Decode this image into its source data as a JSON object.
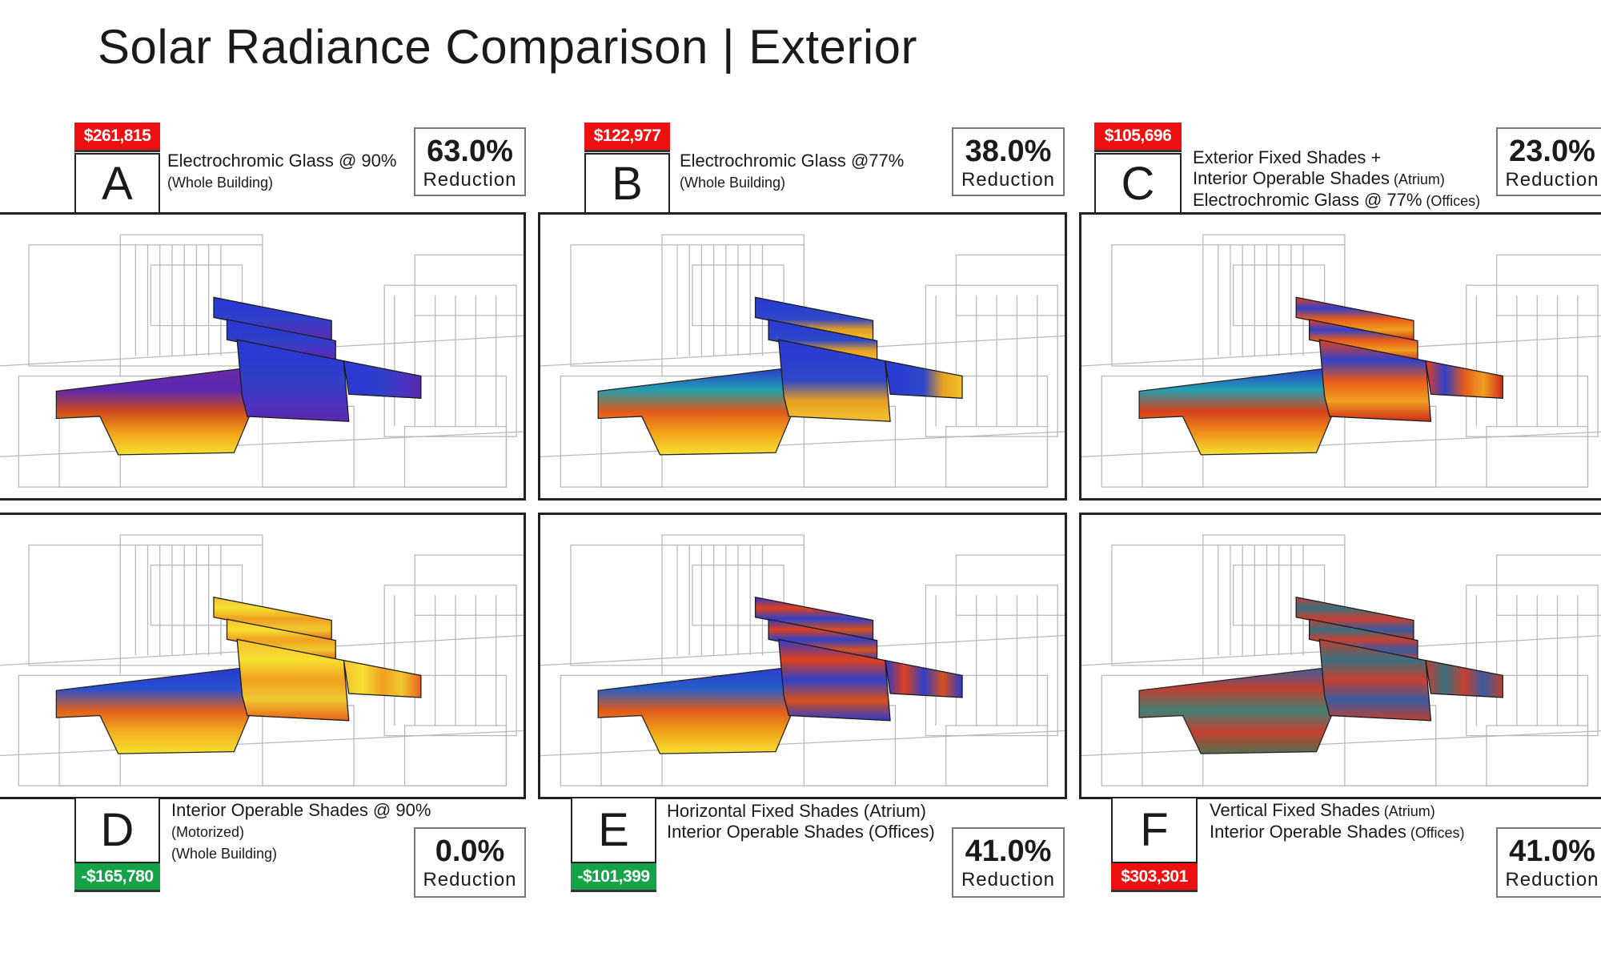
{
  "title": "Solar Radiance Comparison | Exterior",
  "options": [
    {
      "letter": "A",
      "cost": "$261,815",
      "cost_type": "red",
      "lines": [
        [
          "Electrochromic Glass @ 90%",
          ""
        ],
        [
          "(Whole Building)",
          ""
        ]
      ],
      "reduction": "63.0%",
      "reduction_label": "Reduction"
    },
    {
      "letter": "B",
      "cost": "$122,977",
      "cost_type": "red",
      "lines": [
        [
          "Electrochromic Glass @77%",
          ""
        ],
        [
          "(Whole Building)",
          ""
        ]
      ],
      "reduction": "38.0%",
      "reduction_label": "Reduction"
    },
    {
      "letter": "C",
      "cost": "$105,696",
      "cost_type": "red",
      "lines": [
        [
          "Exterior Fixed Shades +",
          ""
        ],
        [
          "Interior Operable Shades",
          "(Atrium)"
        ],
        [
          "Electrochromic Glass @ 77%",
          "(Offices)"
        ]
      ],
      "reduction": "23.0%",
      "reduction_label": "Reduction"
    },
    {
      "letter": "D",
      "cost": "-$165,780",
      "cost_type": "green",
      "lines": [
        [
          "Interior Operable Shades @ 90%",
          ""
        ],
        [
          "(Motorized)",
          ""
        ],
        [
          "(Whole Building)",
          ""
        ]
      ],
      "reduction": "0.0%",
      "reduction_label": "Reduction"
    },
    {
      "letter": "E",
      "cost": "-$101,399",
      "cost_type": "green",
      "lines": [
        [
          "Horizontal Fixed Shades (Atrium)",
          ""
        ],
        [
          "Interior Operable Shades (Offices)",
          ""
        ]
      ],
      "reduction": "41.0%",
      "reduction_label": "Reduction"
    },
    {
      "letter": "F",
      "cost": "$303,301",
      "cost_type": "red",
      "lines": [
        [
          "Vertical Fixed Shades",
          "(Atrium)"
        ],
        [
          "Interior Operable Shades",
          "(Offices)"
        ]
      ],
      "reduction": "41.0%",
      "reduction_label": "Reduction"
    }
  ],
  "colors": {
    "cost_increase": "#ee1010",
    "cost_savings": "#14a447"
  }
}
